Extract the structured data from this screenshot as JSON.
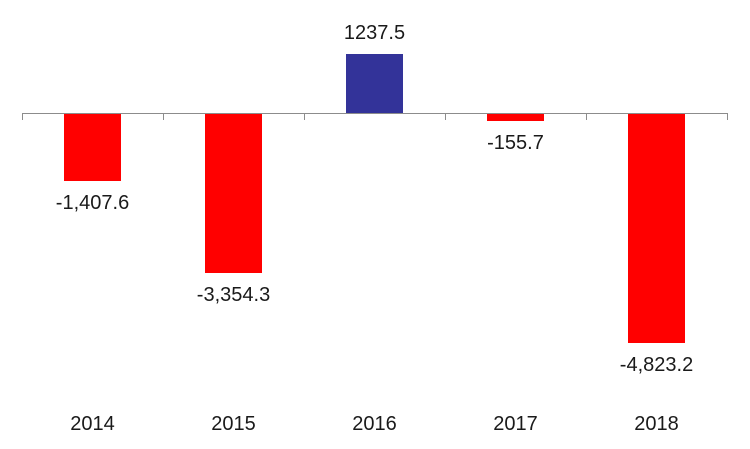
{
  "chart_data": {
    "type": "bar",
    "title": "",
    "xlabel": "",
    "ylabel": "",
    "categories": [
      "2014",
      "2015",
      "2016",
      "2017",
      "2018"
    ],
    "values": [
      -1407.6,
      -3354.3,
      1237.5,
      -155.7,
      -4823.2
    ],
    "value_labels": [
      "-1,407.6",
      "-3,354.3",
      "1237.5",
      "-155.7",
      "-4,823.2"
    ],
    "ylim": [
      -5000,
      1500
    ],
    "grid": "off",
    "legend": "none",
    "colors": {
      "positive_bar": "#333399",
      "negative_bar": "#ff0000",
      "axis": "#8c8c8c",
      "label_text": "#1a1a1a",
      "background": "#ffffff"
    }
  }
}
